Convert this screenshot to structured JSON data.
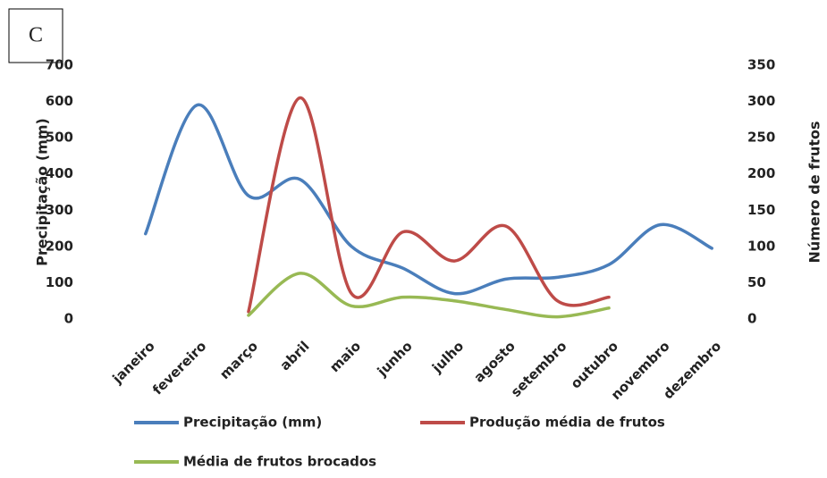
{
  "panel_label": "C",
  "chart_data": {
    "type": "line",
    "categories": [
      "janeiro",
      "fevereiro",
      "março",
      "abril",
      "maio",
      "junho",
      "julho",
      "agosto",
      "setembro",
      "outubro",
      "novembro",
      "dezembro"
    ],
    "ylabel": "Precipitação (mm)",
    "y2label": "Número de frutos",
    "ylim": [
      0,
      700
    ],
    "yticks": [
      0,
      100,
      200,
      300,
      400,
      500,
      600,
      700
    ],
    "y2lim": [
      0,
      350
    ],
    "y2ticks": [
      0,
      50,
      100,
      150,
      200,
      250,
      300,
      350
    ],
    "smooth": true,
    "series": [
      {
        "name": "Precipitação (mm)",
        "color": "#4a7ebb",
        "values": [
          235,
          590,
          340,
          385,
          200,
          140,
          70,
          110,
          115,
          150,
          260,
          195
        ]
      },
      {
        "name": "Produção média de frutos",
        "color": "#be4b48",
        "axis": "y2",
        "values": [
          null,
          null,
          10,
          305,
          35,
          120,
          80,
          128,
          25,
          30,
          null,
          null
        ]
      },
      {
        "name": "Média de frutos brocados",
        "color": "#98b954",
        "axis": "y2",
        "values": [
          null,
          null,
          5,
          63,
          18,
          30,
          25,
          13,
          3,
          15,
          null,
          null
        ]
      }
    ]
  }
}
